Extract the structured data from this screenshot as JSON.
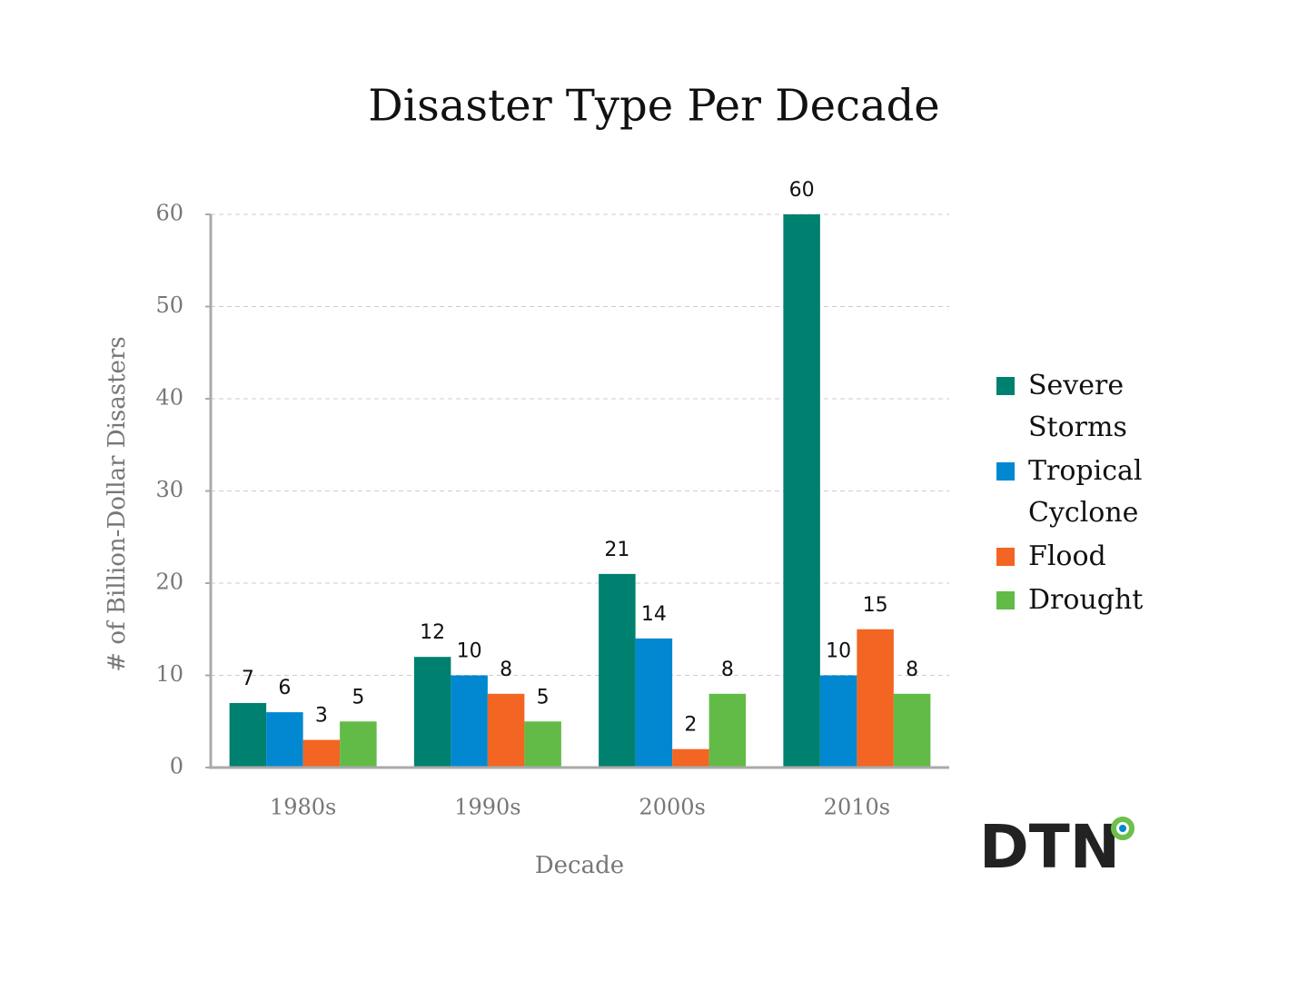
{
  "chart_data": {
    "type": "bar",
    "title": "Disaster Type Per Decade",
    "x_label": "Decade",
    "y_label": "# of Billion-Dollar Disasters",
    "categories": [
      "1980s",
      "1990s",
      "2000s",
      "2010s"
    ],
    "series": [
      {
        "name": "Severe Storms",
        "color": "#00806f",
        "values": [
          7,
          12,
          21,
          60
        ]
      },
      {
        "name": "Tropical Cyclone",
        "color": "#0288d1",
        "values": [
          6,
          10,
          14,
          10
        ]
      },
      {
        "name": "Flood",
        "color": "#f26522",
        "values": [
          3,
          8,
          2,
          15
        ]
      },
      {
        "name": "Drought",
        "color": "#62bb46",
        "values": [
          5,
          5,
          8,
          8
        ]
      }
    ],
    "ylim": [
      0,
      60
    ],
    "yticks": [
      0,
      10,
      20,
      30,
      40,
      50,
      60
    ],
    "grid": true,
    "legend": "right",
    "logo": "DTN"
  }
}
